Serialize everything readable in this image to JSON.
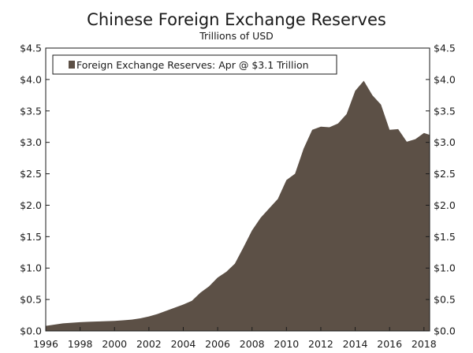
{
  "chart_data": {
    "type": "area",
    "title": "Chinese Foreign Exchange Reserves",
    "subtitle": "Trillions of USD",
    "x_ticks": [
      "1996",
      "1998",
      "2000",
      "2002",
      "2004",
      "2006",
      "2008",
      "2010",
      "2012",
      "2014",
      "2016",
      "2018"
    ],
    "y_ticks_left": [
      "$0.0",
      "$0.5",
      "$1.0",
      "$1.5",
      "$2.0",
      "$2.5",
      "$3.0",
      "$3.5",
      "$4.0",
      "$4.5"
    ],
    "y_ticks_right": [
      "$0.0",
      "$0.5",
      "$1.0",
      "$1.5",
      "$2.0",
      "$2.5",
      "$3.0",
      "$3.5",
      "$4.0",
      "$4.5"
    ],
    "xlim": [
      1996,
      2018.33
    ],
    "ylim": [
      0,
      4.5
    ],
    "grid": false,
    "legend_position": "top-left",
    "series": [
      {
        "name": "Foreign Exchange Reserves: Apr @ $3.1 Trillion",
        "color": "#5c5046",
        "x": [
          1996.0,
          1996.5,
          1997.0,
          1997.5,
          1998.0,
          1998.5,
          1999.0,
          1999.5,
          2000.0,
          2000.5,
          2001.0,
          2001.5,
          2002.0,
          2002.5,
          2003.0,
          2003.5,
          2004.0,
          2004.5,
          2005.0,
          2005.5,
          2006.0,
          2006.5,
          2007.0,
          2007.5,
          2008.0,
          2008.5,
          2009.0,
          2009.5,
          2010.0,
          2010.5,
          2011.0,
          2011.5,
          2012.0,
          2012.5,
          2013.0,
          2013.5,
          2014.0,
          2014.5,
          2015.0,
          2015.5,
          2016.0,
          2016.5,
          2017.0,
          2017.5,
          2018.0,
          2018.33
        ],
        "y": [
          0.08,
          0.1,
          0.12,
          0.13,
          0.14,
          0.145,
          0.15,
          0.155,
          0.16,
          0.17,
          0.18,
          0.2,
          0.23,
          0.27,
          0.32,
          0.37,
          0.42,
          0.48,
          0.61,
          0.71,
          0.85,
          0.94,
          1.07,
          1.33,
          1.6,
          1.8,
          1.95,
          2.1,
          2.4,
          2.5,
          2.9,
          3.2,
          3.25,
          3.24,
          3.3,
          3.45,
          3.82,
          3.98,
          3.75,
          3.6,
          3.2,
          3.21,
          3.01,
          3.05,
          3.15,
          3.12
        ]
      }
    ]
  }
}
